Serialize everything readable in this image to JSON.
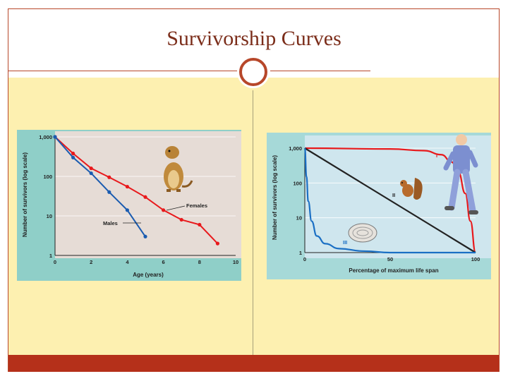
{
  "slide": {
    "title": "Survivorship Curves"
  },
  "colors": {
    "accent": "#b5301a",
    "content_bg": "#fdf0b0",
    "female": "#e8191c",
    "male": "#1a5bb0",
    "type_I": "#e8191c",
    "type_II": "#222222",
    "type_III": "#1a6fc4"
  },
  "icons": [
    "prairie-dog-icon",
    "squirrel-icon",
    "human-runner-icon",
    "oyster-icon"
  ],
  "chart_data": [
    {
      "type": "line",
      "xlabel": "Age (years)",
      "ylabel": "Number of survivors (log scale)",
      "y_scale": "log",
      "xlim": [
        0,
        10
      ],
      "ylim": [
        1,
        1000
      ],
      "x_ticks": [
        0,
        2,
        4,
        6,
        8,
        10
      ],
      "y_ticks": [
        1,
        10,
        100,
        1000
      ],
      "y_tick_labels": [
        "1",
        "10",
        "100",
        "1,000"
      ],
      "series": [
        {
          "name": "Females",
          "x": [
            0,
            1,
            2,
            3,
            4,
            5,
            6,
            7,
            8,
            9
          ],
          "values": [
            1000,
            380,
            160,
            95,
            55,
            30,
            14,
            8,
            6,
            2
          ]
        },
        {
          "name": "Males",
          "x": [
            0,
            1,
            2,
            3,
            4,
            5
          ],
          "values": [
            1000,
            300,
            120,
            40,
            14,
            3
          ]
        }
      ]
    },
    {
      "type": "line",
      "xlabel": "Percentage of maximum life span",
      "ylabel": "Number of survivors (log scale)",
      "y_scale": "log",
      "xlim": [
        0,
        100
      ],
      "ylim": [
        1,
        1000
      ],
      "x_ticks": [
        0,
        50,
        100
      ],
      "y_ticks": [
        1,
        10,
        100,
        1000
      ],
      "y_tick_labels": [
        "1",
        "10",
        "100",
        "1,000"
      ],
      "series": [
        {
          "name": "I",
          "x": [
            0,
            50,
            70,
            80,
            86,
            90,
            94,
            97,
            100
          ],
          "values": [
            1000,
            950,
            850,
            650,
            400,
            200,
            50,
            8,
            1
          ]
        },
        {
          "name": "II",
          "x": [
            0,
            100
          ],
          "values": [
            1000,
            1
          ]
        },
        {
          "name": "III",
          "x": [
            0,
            1,
            2,
            4,
            7,
            12,
            20,
            35,
            50,
            100
          ],
          "values": [
            1000,
            150,
            30,
            8,
            3,
            1.8,
            1.3,
            1.1,
            1.0,
            1.0
          ]
        }
      ]
    }
  ]
}
